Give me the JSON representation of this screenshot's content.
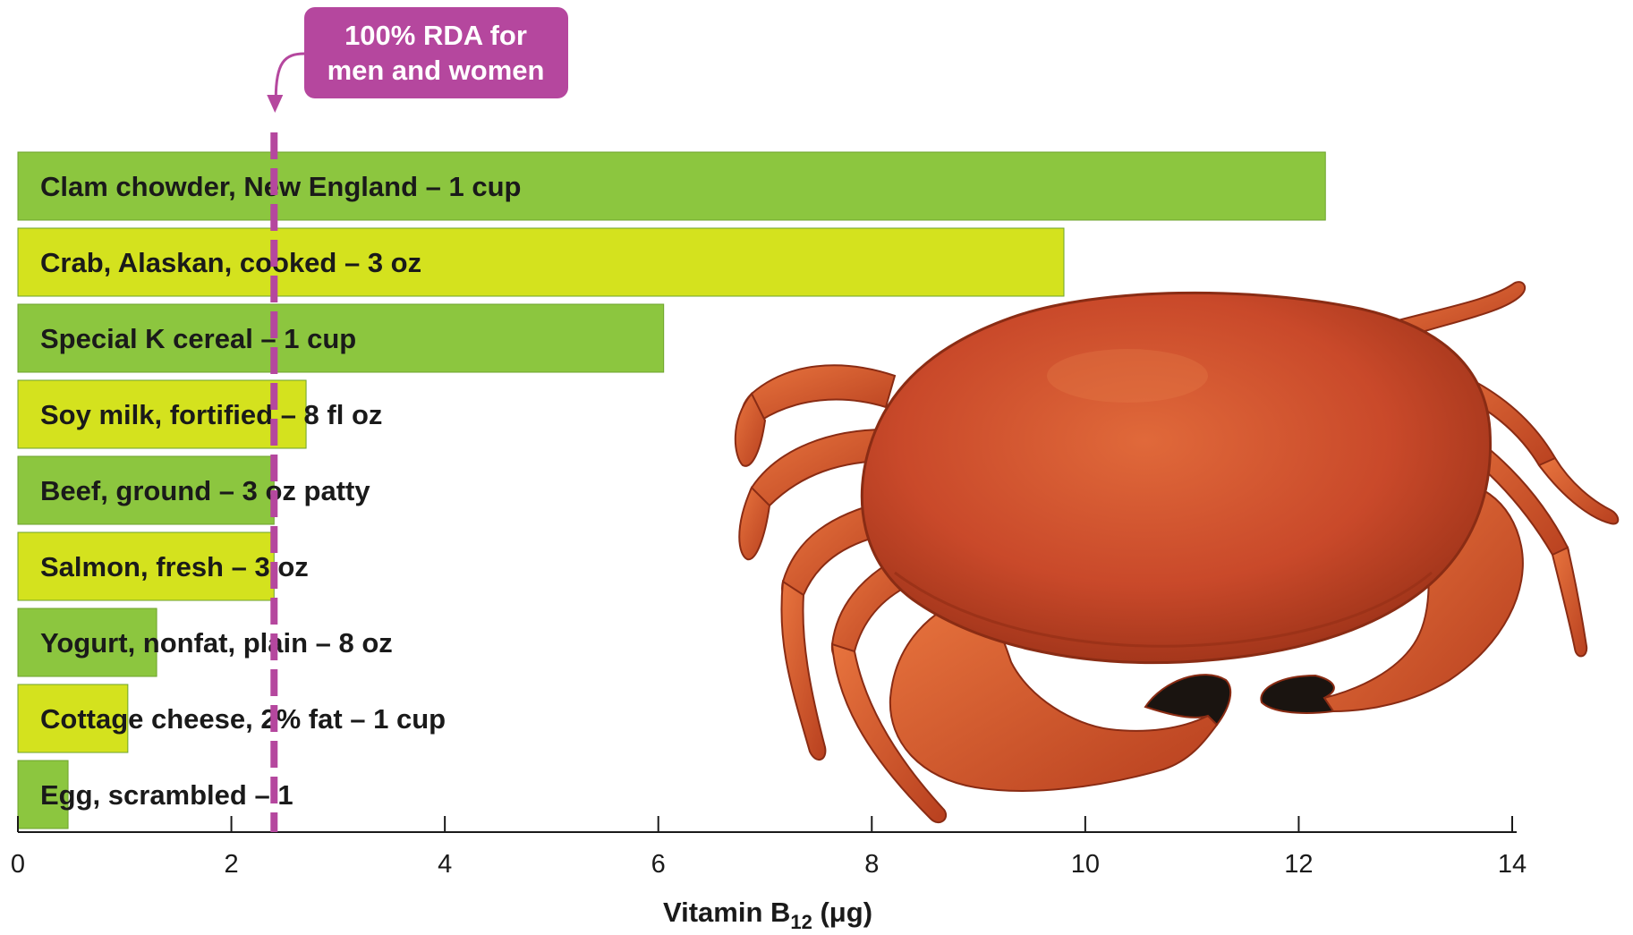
{
  "chart_data": {
    "type": "bar",
    "orientation": "horizontal",
    "categories": [
      "Clam chowder, New England – 1 cup",
      "Crab, Alaskan, cooked – 3 oz",
      "Special K cereal – 1 cup",
      "Soy milk, fortified – 8 fl oz",
      "Beef, ground – 3 oz patty",
      "Salmon, fresh – 3 oz",
      "Yogurt, nonfat, plain – 8 oz",
      "Cottage cheese, 2% fat – 1 cup",
      "Egg, scrambled – 1"
    ],
    "values": [
      12.25,
      9.8,
      6.05,
      2.7,
      2.4,
      2.4,
      1.3,
      1.03,
      0.47
    ],
    "bar_colors": [
      "#8cc63f",
      "#d4e21e",
      "#8cc63f",
      "#d4e21e",
      "#8cc63f",
      "#d4e21e",
      "#8cc63f",
      "#d4e21e",
      "#8cc63f"
    ],
    "xlim": [
      0,
      14
    ],
    "xticks": [
      0,
      2,
      4,
      6,
      8,
      10,
      12,
      14
    ],
    "xlabel_main": "Vitamin B",
    "xlabel_sub": "12",
    "xlabel_unit": " (μg)",
    "reference_line": {
      "value": 2.4,
      "label_line1": "100% RDA for",
      "label_line2": "men and women",
      "color": "#b5479e"
    },
    "grid": false,
    "legend": "none",
    "illustration": "crab-photo"
  }
}
